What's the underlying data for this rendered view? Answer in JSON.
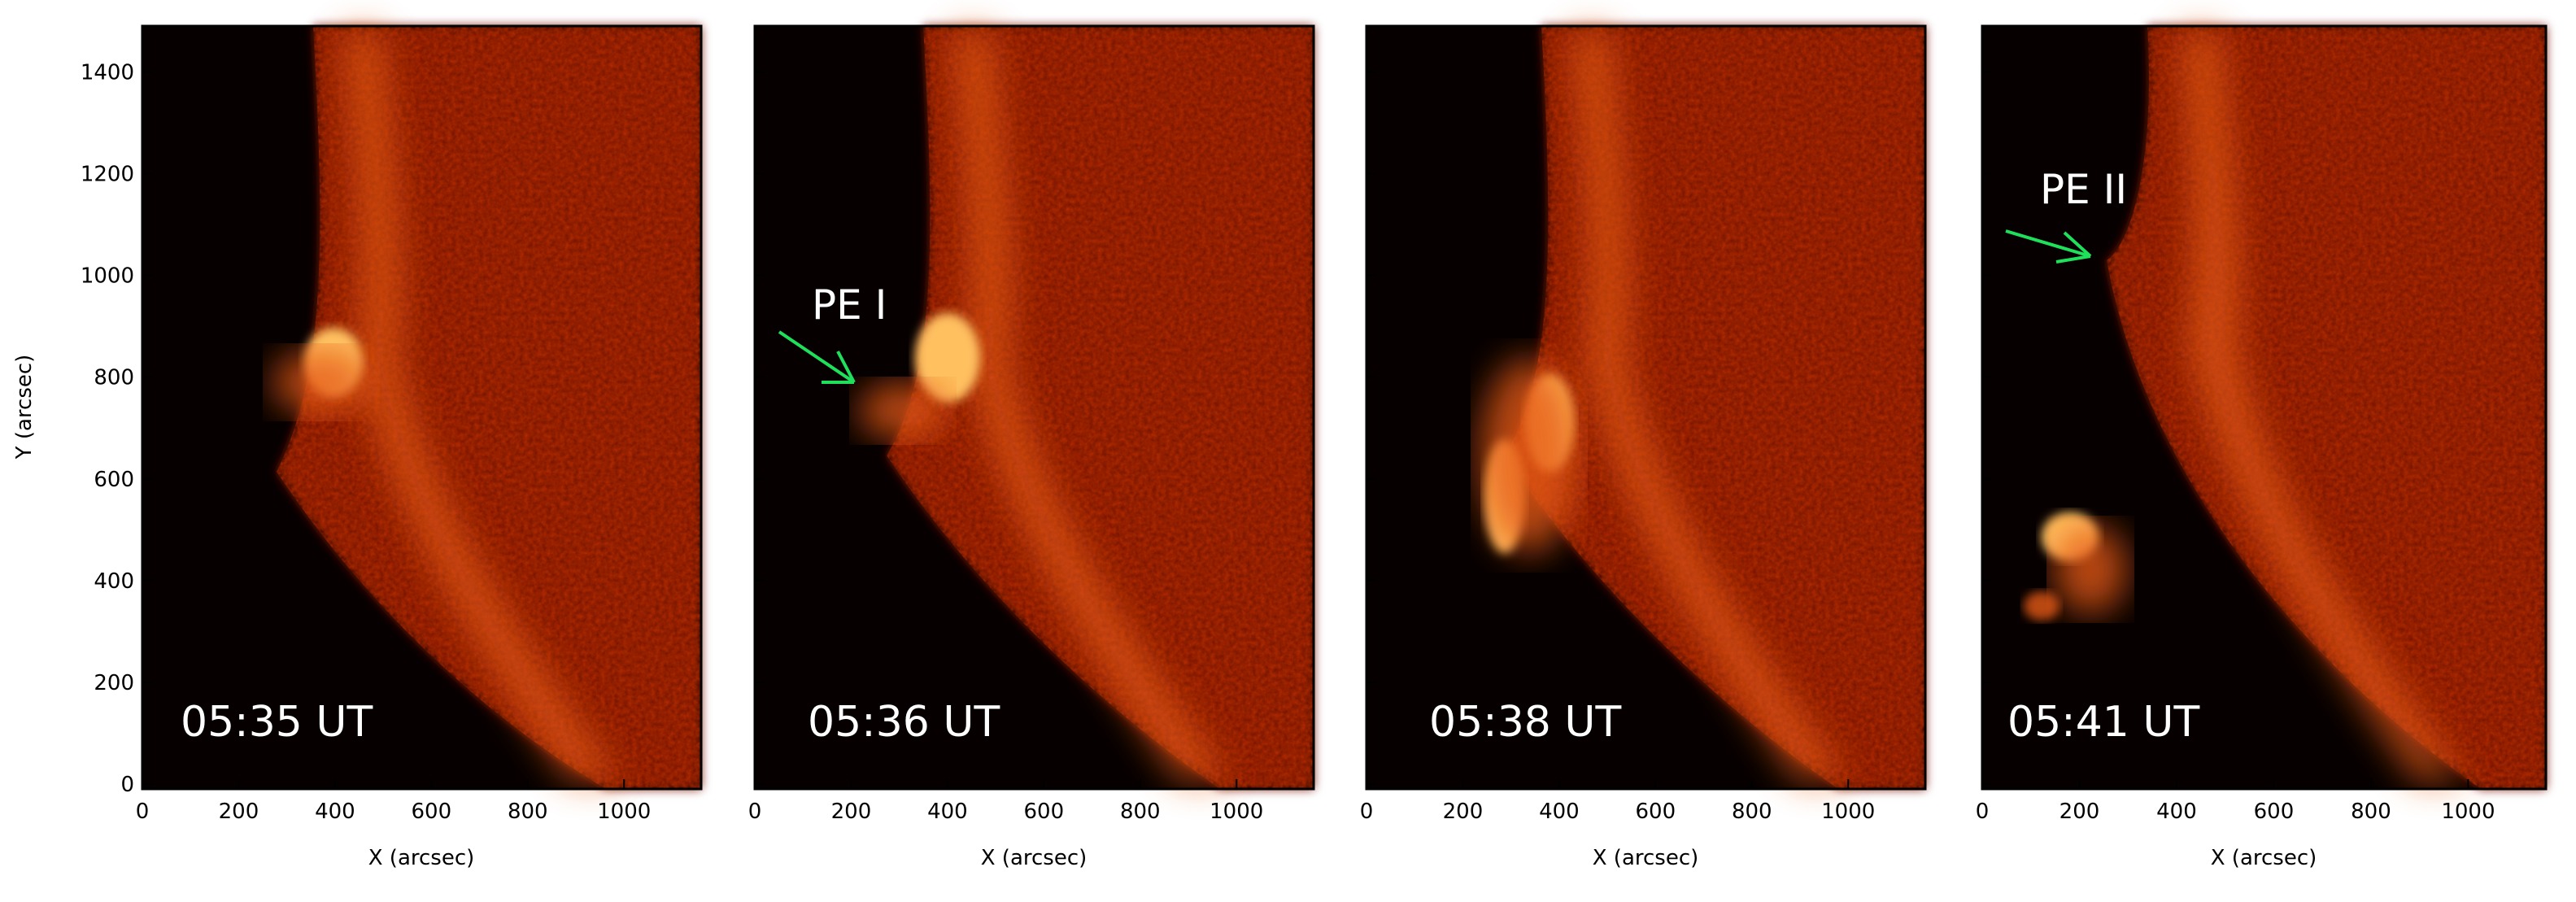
{
  "figure": {
    "colors": {
      "background": "#060000",
      "limb_deep": "#7a1200",
      "limb_mid": "#b82d08",
      "limb_bright": "#e55a14",
      "flare_bright": "#ffc060",
      "arrow": "#1fe05a",
      "text_overlay": "#ffffff"
    },
    "x_axis": {
      "label": "X (arcsec)",
      "ticks": [
        "0",
        "200",
        "400",
        "600",
        "800",
        "1000"
      ]
    },
    "y_axis": {
      "label": "Y (arcsec)",
      "ticks": [
        "0",
        "200",
        "400",
        "600",
        "800",
        "1000",
        "1200",
        "1400"
      ]
    },
    "panels": [
      {
        "time": "05:35 UT",
        "annotation": "",
        "arrow_icon": ""
      },
      {
        "time": "05:36 UT",
        "annotation": "PE I",
        "arrow_icon": "green-arrow-icon"
      },
      {
        "time": "05:38 UT",
        "annotation": "",
        "arrow_icon": ""
      },
      {
        "time": "05:41 UT",
        "annotation": "PE II",
        "arrow_icon": "green-arrow-icon"
      }
    ]
  }
}
